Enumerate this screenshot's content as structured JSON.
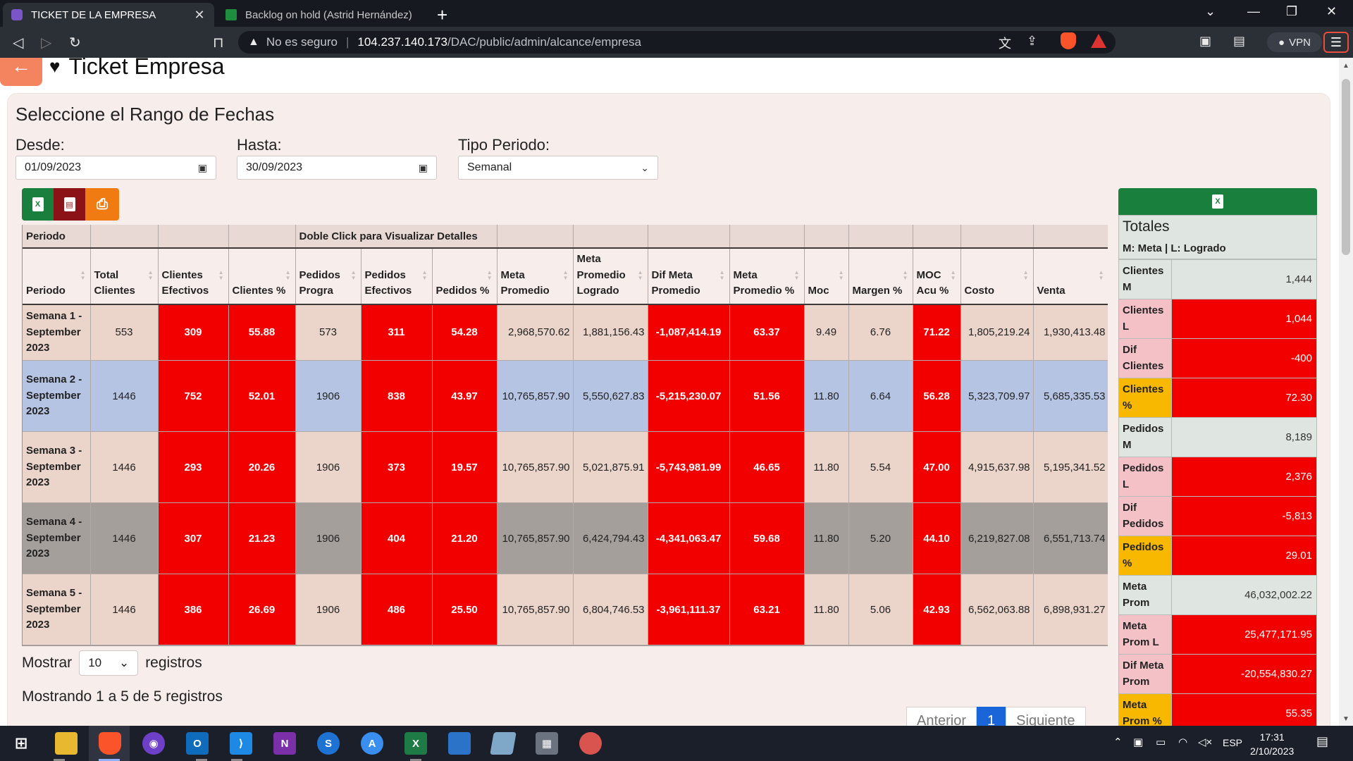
{
  "browser": {
    "tabs": [
      {
        "title": "TICKET DE LA EMPRESA",
        "active": true
      },
      {
        "title": "Backlog on hold (Astrid Hernández) -",
        "active": false
      }
    ],
    "url_insecure": "No es seguro",
    "url_host": "104.237.140.173",
    "url_path": "/DAC/public/admin/alcance/empresa",
    "vpn_label": "VPN",
    "badge_count": "1"
  },
  "page": {
    "title": "Ticket Empresa",
    "card_title": "Seleccione el Rango de Fechas",
    "filters": {
      "desde_label": "Desde:",
      "desde_value": "01/09/2023",
      "hasta_label": "Hasta:",
      "hasta_value": "30/09/2023",
      "tipo_label": "Tipo Periodo:",
      "tipo_value": "Semanal"
    },
    "export": {
      "excel": "X",
      "pdf": "PDF"
    }
  },
  "table": {
    "group_header": {
      "periodo": "Periodo",
      "detalle": "Doble Click para Visualizar Detalles"
    },
    "columns": [
      "Periodo",
      "Total Clientes",
      "Clientes Efectivos",
      "Clientes %",
      "Pedidos Progra",
      "Pedidos Efectivos",
      "Pedidos %",
      "Meta Promedio",
      "Meta Promedio Logrado",
      "Dif Meta Promedio",
      "Meta Promedio %",
      "Moc",
      "Margen %",
      "MOC Acu %",
      "Costo",
      "Venta"
    ],
    "rows": [
      {
        "periodo": "Semana 1 - September 2023",
        "total_clientes": "553",
        "clientes_efectivos": "309",
        "clientes_pct": "55.88",
        "pedidos_progra": "573",
        "pedidos_efectivos": "311",
        "pedidos_pct": "54.28",
        "meta_promedio": "2,968,570.62",
        "meta_logrado": "1,881,156.43",
        "dif_meta": "-1,087,414.19",
        "meta_pct": "63.37",
        "moc": "9.49",
        "margen": "6.76",
        "moc_acu": "71.22",
        "costo": "1,805,219.24",
        "venta": "1,930,413.48"
      },
      {
        "periodo": "Semana 2 - September 2023",
        "total_clientes": "1446",
        "clientes_efectivos": "752",
        "clientes_pct": "52.01",
        "pedidos_progra": "1906",
        "pedidos_efectivos": "838",
        "pedidos_pct": "43.97",
        "meta_promedio": "10,765,857.90",
        "meta_logrado": "5,550,627.83",
        "dif_meta": "-5,215,230.07",
        "meta_pct": "51.56",
        "moc": "11.80",
        "margen": "6.64",
        "moc_acu": "56.28",
        "costo": "5,323,709.97",
        "venta": "5,685,335.53"
      },
      {
        "periodo": "Semana 3 - September 2023",
        "total_clientes": "1446",
        "clientes_efectivos": "293",
        "clientes_pct": "20.26",
        "pedidos_progra": "1906",
        "pedidos_efectivos": "373",
        "pedidos_pct": "19.57",
        "meta_promedio": "10,765,857.90",
        "meta_logrado": "5,021,875.91",
        "dif_meta": "-5,743,981.99",
        "meta_pct": "46.65",
        "moc": "11.80",
        "margen": "5.54",
        "moc_acu": "47.00",
        "costo": "4,915,637.98",
        "venta": "5,195,341.52"
      },
      {
        "periodo": "Semana 4 - September 2023",
        "total_clientes": "1446",
        "clientes_efectivos": "307",
        "clientes_pct": "21.23",
        "pedidos_progra": "1906",
        "pedidos_efectivos": "404",
        "pedidos_pct": "21.20",
        "meta_promedio": "10,765,857.90",
        "meta_logrado": "6,424,794.43",
        "dif_meta": "-4,341,063.47",
        "meta_pct": "59.68",
        "moc": "11.80",
        "margen": "5.20",
        "moc_acu": "44.10",
        "costo": "6,219,827.08",
        "venta": "6,551,713.74"
      },
      {
        "periodo": "Semana 5 - September 2023",
        "total_clientes": "1446",
        "clientes_efectivos": "386",
        "clientes_pct": "26.69",
        "pedidos_progra": "1906",
        "pedidos_efectivos": "486",
        "pedidos_pct": "25.50",
        "meta_promedio": "10,765,857.90",
        "meta_logrado": "6,804,746.53",
        "dif_meta": "-3,961,111.37",
        "meta_pct": "63.21",
        "moc": "11.80",
        "margen": "5.06",
        "moc_acu": "42.93",
        "costo": "6,562,063.88",
        "venta": "6,898,931.27"
      }
    ],
    "length_label_pre": "Mostrar",
    "length_value": "10",
    "length_label_post": "registros",
    "info": "Mostrando 1 a 5 de 5 registros",
    "pager": {
      "prev": "Anterior",
      "current": "1",
      "next": "Siguiente"
    }
  },
  "totals": {
    "title": "Totales",
    "legend": "M: Meta | L: Logrado",
    "items": [
      {
        "label": "Clientes M",
        "value": "1,444"
      },
      {
        "label": "Clientes L",
        "value": "1,044"
      },
      {
        "label": "Dif Clientes",
        "value": "-400"
      },
      {
        "label": "Clientes %",
        "value": "72.30"
      },
      {
        "label": "Pedidos M",
        "value": "8,189"
      },
      {
        "label": "Pedidos L",
        "value": "2,376"
      },
      {
        "label": "Dif Pedidos",
        "value": "-5,813"
      },
      {
        "label": "Pedidos %",
        "value": "29.01"
      },
      {
        "label": "Meta Prom",
        "value": "46,032,002.22"
      },
      {
        "label": "Meta Prom L",
        "value": "25,477,171.95"
      },
      {
        "label": "Dif Meta Prom",
        "value": "-20,554,830.27"
      },
      {
        "label": "Meta Prom %",
        "value": "55.35"
      }
    ]
  },
  "taskbar": {
    "apps": [
      "start-icon",
      "file-explorer-icon",
      "brave-icon",
      "github-icon",
      "outlook-icon",
      "vscode-icon",
      "onenote-icon",
      "sublime-icon",
      "app-store-icon",
      "excel-icon",
      "remote-desktop-icon",
      "notes-icon",
      "calculator-icon",
      "paint-icon"
    ],
    "lang": "ESP",
    "time": "17:31",
    "date": "2/10/2023"
  },
  "colors": {
    "red": "#f20000",
    "beige": "#ebd5cb",
    "blue": "#b6c4e4",
    "gray": "#a59f9c",
    "green": "#18803c",
    "yellow": "#f8b800"
  }
}
